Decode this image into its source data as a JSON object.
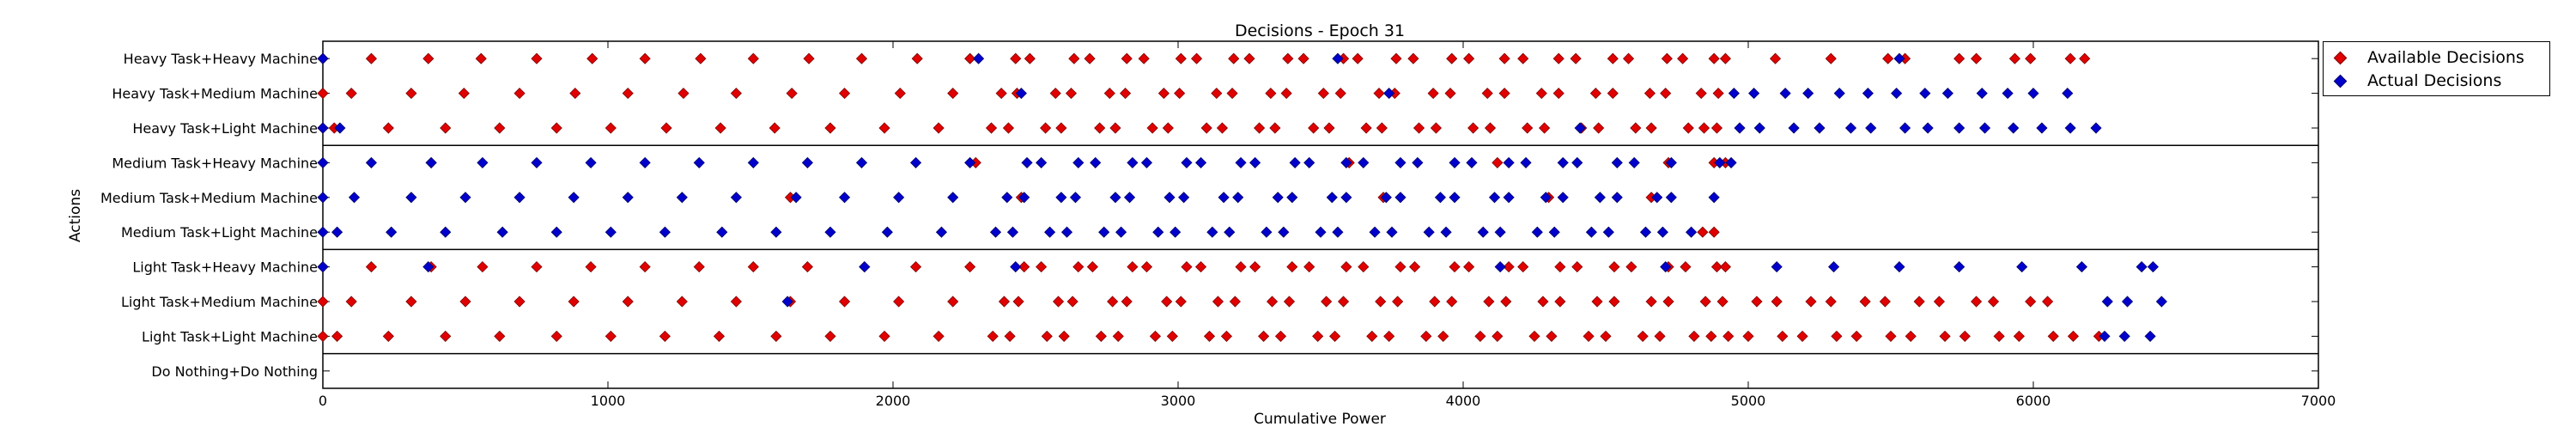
{
  "chart_data": {
    "type": "scatter",
    "title": "Decisions - Epoch 31",
    "xlabel": "Cumulative Power",
    "ylabel": "Actions",
    "xlim": [
      0,
      7000
    ],
    "xticks": [
      "0",
      "1000",
      "2000",
      "3000",
      "4000",
      "5000",
      "6000",
      "7000"
    ],
    "categories": [
      "Heavy Task+Heavy Machine",
      "Heavy Task+Medium Machine",
      "Heavy Task+Light Machine",
      "Medium Task+Heavy Machine",
      "Medium Task+Medium Machine",
      "Medium Task+Light Machine",
      "Light Task+Heavy Machine",
      "Light Task+Medium Machine",
      "Light Task+Light Machine",
      "Do Nothing+Do Nothing"
    ],
    "grid": false,
    "legend_position": "outside-top-right",
    "colors": {
      "available": "#e00000",
      "actual": "#0000cc"
    },
    "series": [
      {
        "name": "Available Decisions",
        "color": "#e00000",
        "points": [
          {
            "cat": 0,
            "xs": [
              0,
              170,
              370,
              555,
              750,
              945,
              1130,
              1325,
              1510,
              1705,
              1890,
              2085,
              2270,
              2430,
              2480,
              2635,
              2690,
              2820,
              2880,
              3010,
              3065,
              3195,
              3250,
              3385,
              3440,
              3580,
              3630,
              3765,
              3825,
              3960,
              4020,
              4145,
              4210,
              4335,
              4395,
              4525,
              4580,
              4715,
              4770,
              4880,
              4920,
              5095,
              5290,
              5490,
              5550,
              5740,
              5800,
              5935,
              5990,
              6130,
              6180
            ]
          },
          {
            "cat": 1,
            "xs": [
              0,
              100,
              310,
              495,
              690,
              885,
              1070,
              1265,
              1450,
              1645,
              1830,
              2025,
              2210,
              2380,
              2435,
              2570,
              2625,
              2760,
              2815,
              2950,
              3005,
              3135,
              3190,
              3325,
              3380,
              3510,
              3570,
              3705,
              3760,
              3895,
              3955,
              4085,
              4145,
              4275,
              4335,
              4465,
              4525,
              4655,
              4710,
              4835,
              4895
            ]
          },
          {
            "cat": 2,
            "xs": [
              0,
              40,
              230,
              430,
              620,
              820,
              1010,
              1205,
              1395,
              1585,
              1780,
              1970,
              2160,
              2345,
              2405,
              2535,
              2590,
              2725,
              2780,
              2910,
              2965,
              3100,
              3155,
              3285,
              3340,
              3475,
              3530,
              3660,
              3715,
              3845,
              3905,
              4035,
              4095,
              4225,
              4285,
              4415,
              4475,
              4605,
              4660,
              4790,
              4845,
              4890
            ]
          },
          {
            "cat": 3,
            "xs": [
              380,
              2290,
              3600,
              4120,
              4720,
              4880,
              4920
            ]
          },
          {
            "cat": 4,
            "xs": [
              1640,
              2450,
              3720,
              4300,
              4660
            ]
          },
          {
            "cat": 5,
            "xs": [
              4840,
              4880
            ]
          },
          {
            "cat": 6,
            "xs": [
              0,
              170,
              380,
              560,
              750,
              940,
              1130,
              1320,
              1510,
              1700,
              1900,
              2080,
              2270,
              2460,
              2520,
              2650,
              2700,
              2840,
              2890,
              3030,
              3080,
              3220,
              3270,
              3400,
              3460,
              3590,
              3650,
              3780,
              3830,
              3970,
              4020,
              4160,
              4210,
              4340,
              4400,
              4530,
              4590,
              4720,
              4780,
              4890,
              4920
            ]
          },
          {
            "cat": 7,
            "xs": [
              0,
              100,
              310,
              500,
              690,
              880,
              1070,
              1260,
              1450,
              1640,
              1830,
              2020,
              2210,
              2390,
              2440,
              2580,
              2630,
              2770,
              2820,
              2960,
              3010,
              3140,
              3200,
              3330,
              3390,
              3520,
              3580,
              3710,
              3770,
              3900,
              3960,
              4090,
              4150,
              4280,
              4340,
              4470,
              4530,
              4660,
              4720,
              4850,
              4910,
              5030,
              5100,
              5220,
              5290,
              5410,
              5480,
              5600,
              5670,
              5800,
              5860,
              5990,
              6050
            ]
          },
          {
            "cat": 8,
            "xs": [
              0,
              50,
              230,
              430,
              620,
              820,
              1010,
              1200,
              1390,
              1590,
              1780,
              1970,
              2160,
              2350,
              2410,
              2540,
              2600,
              2730,
              2790,
              2920,
              2980,
              3110,
              3170,
              3300,
              3360,
              3490,
              3550,
              3680,
              3740,
              3870,
              3930,
              4060,
              4120,
              4250,
              4310,
              4440,
              4500,
              4630,
              4690,
              4810,
              4870,
              4930,
              5000,
              5120,
              5190,
              5310,
              5380,
              5500,
              5570,
              5690,
              5760,
              5880,
              5950,
              6070,
              6140,
              6230
            ]
          }
        ]
      },
      {
        "name": "Actual Decisions",
        "color": "#0000cc",
        "points": [
          {
            "cat": 0,
            "xs": [
              0,
              2300,
              3560,
              5530
            ]
          },
          {
            "cat": 1,
            "xs": [
              2450,
              3740,
              4950,
              5020,
              5130,
              5210,
              5320,
              5420,
              5520,
              5620,
              5700,
              5820,
              5910,
              6000,
              6120
            ]
          },
          {
            "cat": 2,
            "xs": [
              0,
              60,
              4410,
              4970,
              5040,
              5160,
              5250,
              5360,
              5430,
              5550,
              5630,
              5740,
              5830,
              5930,
              6030,
              6130,
              6220
            ]
          },
          {
            "cat": 3,
            "xs": [
              0,
              170,
              380,
              560,
              750,
              940,
              1130,
              1320,
              1510,
              1700,
              1890,
              2080,
              2270,
              2470,
              2520,
              2650,
              2710,
              2840,
              2890,
              3030,
              3080,
              3220,
              3270,
              3410,
              3460,
              3590,
              3650,
              3780,
              3840,
              3970,
              4030,
              4160,
              4220,
              4350,
              4400,
              4540,
              4600,
              4730,
              4900,
              4940
            ]
          },
          {
            "cat": 4,
            "xs": [
              0,
              110,
              310,
              500,
              690,
              880,
              1070,
              1260,
              1450,
              1660,
              1830,
              2020,
              2210,
              2400,
              2460,
              2590,
              2640,
              2780,
              2830,
              2970,
              3020,
              3160,
              3210,
              3350,
              3400,
              3540,
              3590,
              3730,
              3780,
              3920,
              3970,
              4110,
              4160,
              4290,
              4350,
              4480,
              4540,
              4680,
              4730,
              4880
            ]
          },
          {
            "cat": 5,
            "xs": [
              0,
              50,
              240,
              430,
              630,
              820,
              1010,
              1200,
              1400,
              1590,
              1780,
              1980,
              2170,
              2360,
              2420,
              2550,
              2610,
              2740,
              2800,
              2930,
              2990,
              3120,
              3180,
              3310,
              3370,
              3500,
              3560,
              3690,
              3750,
              3880,
              3940,
              4070,
              4130,
              4260,
              4320,
              4450,
              4510,
              4640,
              4700,
              4800
            ]
          },
          {
            "cat": 6,
            "xs": [
              0,
              370,
              1900,
              2430,
              4130,
              4710,
              5100,
              5300,
              5530,
              5740,
              5960,
              6170,
              6380,
              6420
            ]
          },
          {
            "cat": 7,
            "xs": [
              1630,
              6260,
              6330,
              6450
            ]
          },
          {
            "cat": 8,
            "xs": [
              6250,
              6320,
              6410
            ]
          }
        ]
      }
    ]
  }
}
